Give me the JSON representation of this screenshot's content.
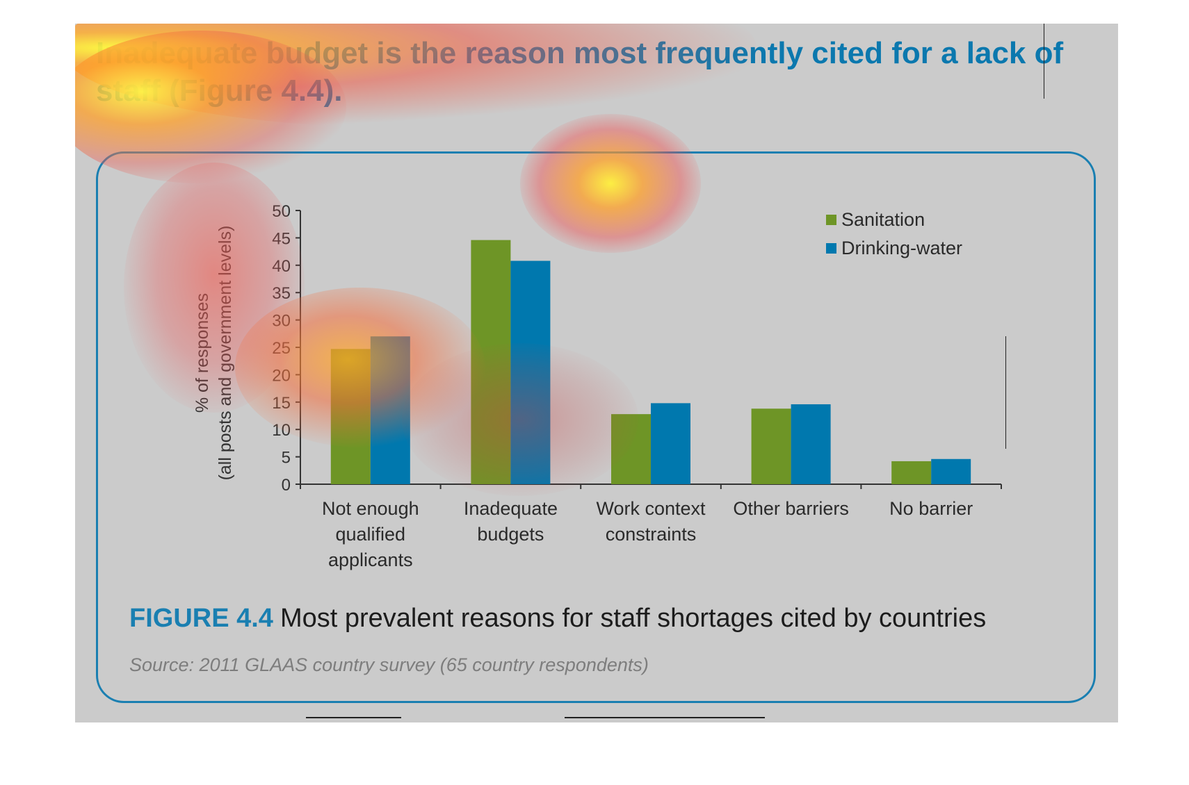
{
  "headline": "Inadequate budget is the reason most frequently cited for a lack of staff (Figure 4.4).",
  "figure": {
    "label": "FIGURE 4.4",
    "title": "Most prevalent reasons for staff shortages cited by countries",
    "source": "Source: 2011 GLAAS country survey (65 country respondents)"
  },
  "colors": {
    "sanitation": "#6e9526",
    "drinking_water": "#0078ae",
    "headline": "#0b78ae",
    "panel_background": "#cbcbcb",
    "box_border": "#1a7fb1"
  },
  "chart_data": {
    "type": "bar",
    "categories": [
      [
        "Not enough",
        "qualified",
        "applicants"
      ],
      [
        "Inadequate",
        "budgets"
      ],
      [
        "Work context",
        "constraints"
      ],
      [
        "Other barriers"
      ],
      [
        "No barrier"
      ]
    ],
    "series": [
      {
        "name": "Sanitation",
        "values": [
          24.7,
          44.6,
          12.8,
          13.8,
          4.2
        ]
      },
      {
        "name": "Drinking-water",
        "values": [
          27.0,
          40.8,
          14.8,
          14.6,
          4.6
        ]
      }
    ],
    "ylabel": [
      "% of responses",
      "(all posts and government levels)"
    ],
    "ylim": [
      0,
      50
    ],
    "yticks": [
      0,
      5,
      10,
      15,
      20,
      25,
      30,
      35,
      40,
      45,
      50
    ],
    "legend_position": "top-right",
    "grid": false
  }
}
